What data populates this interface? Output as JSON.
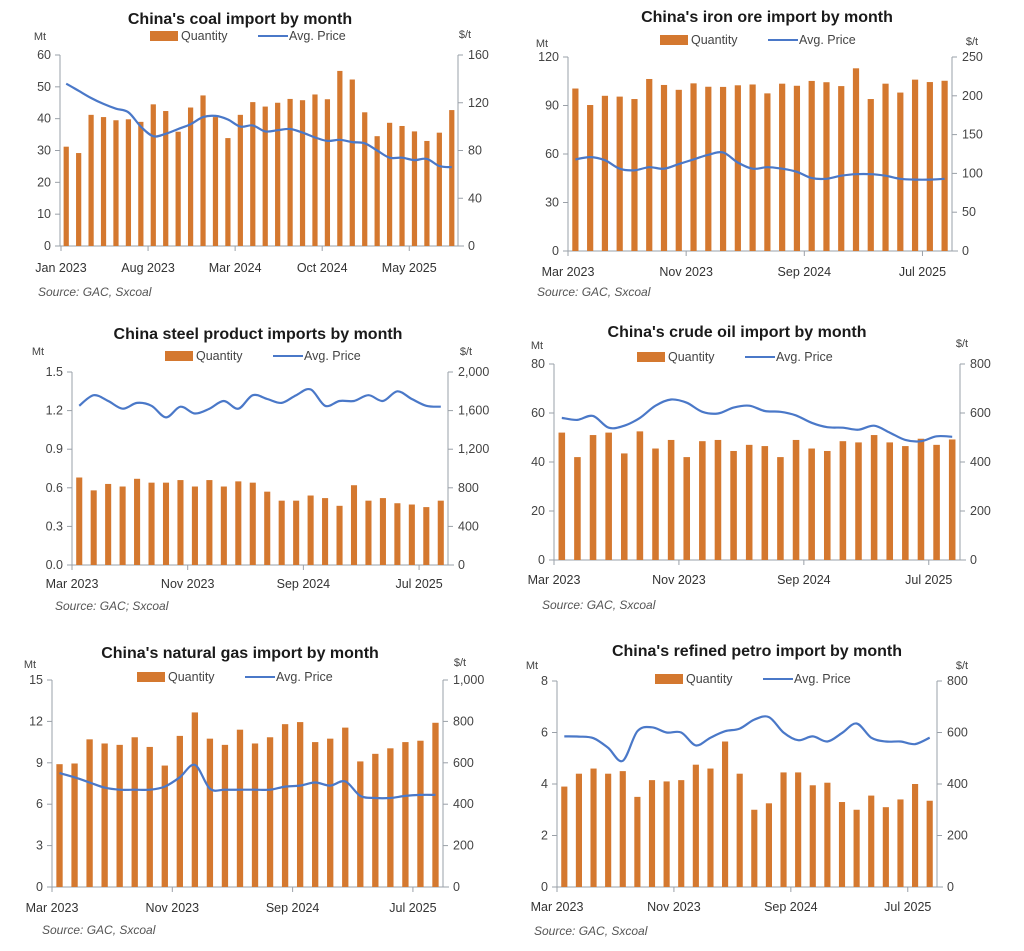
{
  "colors": {
    "quantity": "#D4782F",
    "price": "#4A78C8",
    "axis": "#9aa0a8"
  },
  "chart_data": [
    {
      "type": "bar",
      "id": "coal",
      "title": "China's coal import by month",
      "left_unit": "Mt",
      "right_unit": "$/t",
      "legend": [
        "Quantity",
        "Avg. Price"
      ],
      "legend_position": "top-center",
      "source": "Source: GAC, Sxcoal",
      "ylim": [
        0,
        60
      ],
      "yticks": [
        0,
        10,
        20,
        30,
        40,
        50,
        60
      ],
      "ytick_labels": [
        "0",
        "10",
        "20",
        "30",
        "40",
        "50",
        "60"
      ],
      "y2lim": [
        0,
        160
      ],
      "y2ticks": [
        0,
        40,
        80,
        120,
        160
      ],
      "y2tick_labels": [
        "0",
        "40",
        "80",
        "120",
        "160"
      ],
      "xtick_labels": [
        "Jan 2023",
        "Aug 2023",
        "Mar 2024",
        "Oct 2024",
        "May 2025"
      ],
      "xtick_indices": [
        0,
        7,
        14,
        21,
        28
      ],
      "categories": [
        "Jan 2023",
        "Feb 2023",
        "Mar 2023",
        "Apr 2023",
        "May 2023",
        "Jun 2023",
        "Jul 2023",
        "Aug 2023",
        "Sep 2023",
        "Oct 2023",
        "Nov 2023",
        "Dec 2023",
        "Jan 2024",
        "Feb 2024",
        "Mar 2024",
        "Apr 2024",
        "May 2024",
        "Jun 2024",
        "Jul 2024",
        "Aug 2024",
        "Sep 2024",
        "Oct 2024",
        "Nov 2024",
        "Dec 2024",
        "Jan 2025",
        "Feb 2025",
        "Mar 2025",
        "Apr 2025",
        "May 2025",
        "Jun 2025",
        "Jul 2025",
        "Aug 2025"
      ],
      "series": [
        {
          "name": "Quantity",
          "axis": "left",
          "values": [
            31.2,
            29.2,
            41.2,
            40.5,
            39.5,
            39.8,
            39,
            44.5,
            42.4,
            35.9,
            43.5,
            47.3,
            40.5,
            33.9,
            41.2,
            45.2,
            43.8,
            45,
            46.2,
            45.8,
            47.6,
            46.1,
            55,
            52.3,
            42,
            34.5,
            38.7,
            37.7,
            36,
            33,
            35.6,
            42.7
          ]
        },
        {
          "name": "Avg. Price",
          "axis": "right",
          "values": [
            136,
            130,
            124,
            119,
            115,
            112,
            100,
            92,
            94,
            98,
            102,
            108,
            109,
            106,
            100,
            101,
            96,
            97,
            98,
            95,
            91,
            88,
            89,
            87,
            86,
            80,
            74,
            74,
            72,
            73,
            67,
            66
          ]
        }
      ]
    },
    {
      "type": "bar",
      "id": "iron-ore",
      "title": "China's iron ore import by month",
      "left_unit": "Mt",
      "right_unit": "$/t",
      "legend": [
        "Quantity",
        "Avg. Price"
      ],
      "legend_position": "top-center",
      "source": "Source: GAC, Sxcoal",
      "ylim": [
        0,
        120
      ],
      "yticks": [
        0,
        30,
        60,
        90,
        120
      ],
      "ytick_labels": [
        "0",
        "30",
        "60",
        "90",
        "120"
      ],
      "y2lim": [
        0,
        250
      ],
      "y2ticks": [
        0,
        50,
        100,
        150,
        200,
        250
      ],
      "y2tick_labels": [
        "0",
        "50",
        "100",
        "150",
        "200",
        "250"
      ],
      "xtick_labels": [
        "Mar 2023",
        "Nov 2023",
        "Sep 2024",
        "Jul 2025"
      ],
      "xtick_indices": [
        0,
        8,
        16,
        24
      ],
      "categories": [
        "Mar 2023",
        "Apr 2023",
        "May 2023",
        "Jun 2023",
        "Jul 2023",
        "Aug 2023",
        "Sep 2023",
        "Oct 2023",
        "Nov 2023",
        "Dec 2023",
        "Mar 2024",
        "Apr 2024",
        "May 2024",
        "Jun 2024",
        "Jul 2024",
        "Aug 2024",
        "Sep 2024",
        "Oct 2024",
        "Nov 2024",
        "Dec 2024",
        "Mar 2025",
        "Apr 2025",
        "May 2025",
        "Jun 2025",
        "Jul 2025",
        "Aug 2025"
      ],
      "series": [
        {
          "name": "Quantity",
          "axis": "left",
          "values": [
            100.5,
            90.3,
            96,
            95.5,
            94,
            106.4,
            102.7,
            99.7,
            103.7,
            101.6,
            101.5,
            102.5,
            103,
            97.5,
            103.5,
            102.2,
            105.2,
            104.4,
            102,
            113,
            94,
            103.5,
            98,
            106,
            104.5,
            105.3
          ]
        },
        {
          "name": "Avg. Price",
          "axis": "right",
          "values": [
            118,
            121,
            117,
            106,
            104,
            108,
            106,
            112,
            118,
            124,
            127,
            114,
            106,
            108,
            106,
            102,
            94,
            93,
            97,
            99,
            99,
            97,
            93,
            92,
            92,
            93
          ]
        }
      ]
    },
    {
      "type": "bar",
      "id": "steel",
      "title": "China steel product imports by month",
      "left_unit": "Mt",
      "right_unit": "$/t",
      "legend": [
        "Quantity",
        "Avg. Price"
      ],
      "legend_position": "top-center",
      "source": "Source: GAC; Sxcoal",
      "ylim": [
        0,
        1.5
      ],
      "yticks": [
        0,
        0.3,
        0.6,
        0.9,
        1.2,
        1.5
      ],
      "ytick_labels": [
        "0.0",
        "0.3",
        "0.6",
        "0.9",
        "1.2",
        "1.5"
      ],
      "y2lim": [
        0,
        2000
      ],
      "y2ticks": [
        0,
        400,
        800,
        1200,
        1600,
        2000
      ],
      "y2tick_labels": [
        "0",
        "400",
        "800",
        "1,200",
        "1,600",
        "2,000"
      ],
      "xtick_labels": [
        "Mar 2023",
        "Nov 2023",
        "Sep 2024",
        "Jul 2025"
      ],
      "xtick_indices": [
        0,
        8,
        16,
        24
      ],
      "categories": [
        "Mar 2023",
        "Apr 2023",
        "May 2023",
        "Jun 2023",
        "Jul 2023",
        "Aug 2023",
        "Sep 2023",
        "Oct 2023",
        "Nov 2023",
        "Dec 2023",
        "Mar 2024",
        "Apr 2024",
        "May 2024",
        "Jun 2024",
        "Jul 2024",
        "Aug 2024",
        "Sep 2024",
        "Oct 2024",
        "Nov 2024",
        "Dec 2024",
        "Mar 2025",
        "Apr 2025",
        "May 2025",
        "Jun 2025",
        "Jul 2025",
        "Aug 2025"
      ],
      "series": [
        {
          "name": "Quantity",
          "axis": "left",
          "values": [
            0.68,
            0.58,
            0.63,
            0.61,
            0.67,
            0.64,
            0.64,
            0.66,
            0.61,
            0.66,
            0.61,
            0.65,
            0.64,
            0.57,
            0.5,
            0.5,
            0.54,
            0.52,
            0.46,
            0.62,
            0.5,
            0.52,
            0.48,
            0.47,
            0.45,
            0.5
          ]
        },
        {
          "name": "Avg. Price",
          "axis": "right",
          "values": [
            1650,
            1760,
            1700,
            1620,
            1680,
            1650,
            1530,
            1640,
            1570,
            1620,
            1700,
            1620,
            1760,
            1720,
            1680,
            1760,
            1820,
            1650,
            1700,
            1700,
            1760,
            1700,
            1800,
            1720,
            1650,
            1640
          ]
        }
      ]
    },
    {
      "type": "bar",
      "id": "crude-oil",
      "title": "China's crude oil import by month",
      "left_unit": "Mt",
      "right_unit": "$/t",
      "legend": [
        "Quantity",
        "Avg. Price"
      ],
      "legend_position": "top-center",
      "source": "Source: GAC, Sxcoal",
      "ylim": [
        0,
        80
      ],
      "yticks": [
        0,
        20,
        40,
        60,
        80
      ],
      "ytick_labels": [
        "0",
        "20",
        "40",
        "60",
        "80"
      ],
      "y2lim": [
        0,
        800
      ],
      "y2ticks": [
        0,
        200,
        400,
        600,
        800
      ],
      "y2tick_labels": [
        "0",
        "200",
        "400",
        "600",
        "800"
      ],
      "xtick_labels": [
        "Mar 2023",
        "Nov 2023",
        "Sep 2024",
        "Jul 2025"
      ],
      "xtick_indices": [
        0,
        8,
        16,
        24
      ],
      "categories": [
        "Mar 2023",
        "Apr 2023",
        "May 2023",
        "Jun 2023",
        "Jul 2023",
        "Aug 2023",
        "Sep 2023",
        "Oct 2023",
        "Nov 2023",
        "Dec 2023",
        "Mar 2024",
        "Apr 2024",
        "May 2024",
        "Jun 2024",
        "Jul 2024",
        "Aug 2024",
        "Sep 2024",
        "Oct 2024",
        "Nov 2024",
        "Dec 2024",
        "Mar 2025",
        "Apr 2025",
        "May 2025",
        "Jun 2025",
        "Jul 2025",
        "Aug 2025"
      ],
      "series": [
        {
          "name": "Quantity",
          "axis": "left",
          "values": [
            52,
            42,
            51,
            52,
            43.5,
            52.5,
            45.5,
            49,
            42,
            48.5,
            49,
            44.5,
            47,
            46.5,
            42,
            49,
            45.5,
            44.5,
            48.5,
            48,
            51,
            48,
            46.5,
            49.5,
            47,
            49.2
          ]
        },
        {
          "name": "Avg. Price",
          "axis": "right",
          "values": [
            580,
            572,
            588,
            540,
            548,
            580,
            630,
            655,
            642,
            605,
            598,
            622,
            630,
            608,
            605,
            590,
            560,
            542,
            540,
            532,
            548,
            520,
            490,
            485,
            505,
            503
          ]
        }
      ]
    },
    {
      "type": "bar",
      "id": "natural-gas",
      "title": "China's natural gas import by month",
      "left_unit": "Mt",
      "right_unit": "$/t",
      "legend": [
        "Quantity",
        "Avg. Price"
      ],
      "legend_position": "top-center",
      "source": "Source: GAC, Sxcoal",
      "ylim": [
        0,
        15
      ],
      "yticks": [
        0,
        3,
        6,
        9,
        12,
        15
      ],
      "ytick_labels": [
        "0",
        "3",
        "6",
        "9",
        "12",
        "15"
      ],
      "y2lim": [
        0,
        1000
      ],
      "y2ticks": [
        0,
        200,
        400,
        600,
        800,
        1000
      ],
      "y2tick_labels": [
        "0",
        "200",
        "400",
        "600",
        "800",
        "1,000"
      ],
      "xtick_labels": [
        "Mar 2023",
        "Nov 2023",
        "Sep 2024",
        "Jul 2025"
      ],
      "xtick_indices": [
        0,
        8,
        16,
        24
      ],
      "categories": [
        "Mar 2023",
        "Apr 2023",
        "May 2023",
        "Jun 2023",
        "Jul 2023",
        "Aug 2023",
        "Sep 2023",
        "Oct 2023",
        "Nov 2023",
        "Dec 2023",
        "Mar 2024",
        "Apr 2024",
        "May 2024",
        "Jun 2024",
        "Jul 2024",
        "Aug 2024",
        "Sep 2024",
        "Oct 2024",
        "Nov 2024",
        "Dec 2024",
        "Mar 2025",
        "Apr 2025",
        "May 2025",
        "Jun 2025",
        "Jul 2025",
        "Aug 2025"
      ],
      "series": [
        {
          "name": "Quantity",
          "axis": "left",
          "values": [
            8.9,
            8.95,
            10.7,
            10.4,
            10.3,
            10.85,
            10.15,
            8.8,
            10.95,
            12.65,
            10.75,
            10.3,
            11.4,
            10.4,
            10.85,
            11.8,
            11.95,
            10.5,
            10.75,
            11.55,
            9.1,
            9.65,
            10.05,
            10.5,
            10.6,
            11.9
          ]
        },
        {
          "name": "Avg. Price",
          "axis": "right",
          "values": [
            550,
            530,
            505,
            480,
            470,
            470,
            470,
            485,
            530,
            590,
            475,
            470,
            470,
            470,
            470,
            485,
            490,
            505,
            490,
            510,
            440,
            430,
            430,
            440,
            445,
            445
          ]
        }
      ]
    },
    {
      "type": "bar",
      "id": "refined-petro",
      "title": "China's refined petro import by month",
      "left_unit": "Mt",
      "right_unit": "$/t",
      "legend": [
        "Quantity",
        "Avg. Price"
      ],
      "legend_position": "top-center",
      "source": "Source: GAC, Sxcoal",
      "ylim": [
        0,
        8
      ],
      "yticks": [
        0,
        2,
        4,
        6,
        8
      ],
      "ytick_labels": [
        "0",
        "2",
        "4",
        "6",
        "8"
      ],
      "y2lim": [
        0,
        800
      ],
      "y2ticks": [
        0,
        200,
        400,
        600,
        800
      ],
      "y2tick_labels": [
        "0",
        "200",
        "400",
        "600",
        "800"
      ],
      "xtick_labels": [
        "Mar 2023",
        "Nov 2023",
        "Sep 2024",
        "Jul 2025"
      ],
      "xtick_indices": [
        0,
        8,
        16,
        24
      ],
      "categories": [
        "Mar 2023",
        "Apr 2023",
        "May 2023",
        "Jun 2023",
        "Jul 2023",
        "Aug 2023",
        "Sep 2023",
        "Oct 2023",
        "Nov 2023",
        "Dec 2023",
        "Mar 2024",
        "Apr 2024",
        "May 2024",
        "Jun 2024",
        "Jul 2024",
        "Aug 2024",
        "Sep 2024",
        "Oct 2024",
        "Nov 2024",
        "Dec 2024",
        "Mar 2025",
        "Apr 2025",
        "May 2025",
        "Jun 2025",
        "Jul 2025",
        "Aug 2025"
      ],
      "series": [
        {
          "name": "Quantity",
          "axis": "left",
          "values": [
            3.9,
            4.4,
            4.6,
            4.4,
            4.5,
            3.5,
            4.15,
            4.1,
            4.15,
            4.75,
            4.6,
            5.65,
            4.4,
            3.0,
            3.25,
            4.45,
            4.45,
            3.95,
            4.05,
            3.3,
            3.0,
            3.55,
            3.1,
            3.4,
            4.0,
            3.35
          ]
        },
        {
          "name": "Avg. Price",
          "axis": "right",
          "values": [
            585,
            584,
            578,
            540,
            490,
            605,
            620,
            600,
            600,
            550,
            580,
            605,
            615,
            650,
            660,
            600,
            570,
            585,
            565,
            598,
            635,
            580,
            565,
            565,
            555,
            580
          ]
        }
      ]
    }
  ]
}
